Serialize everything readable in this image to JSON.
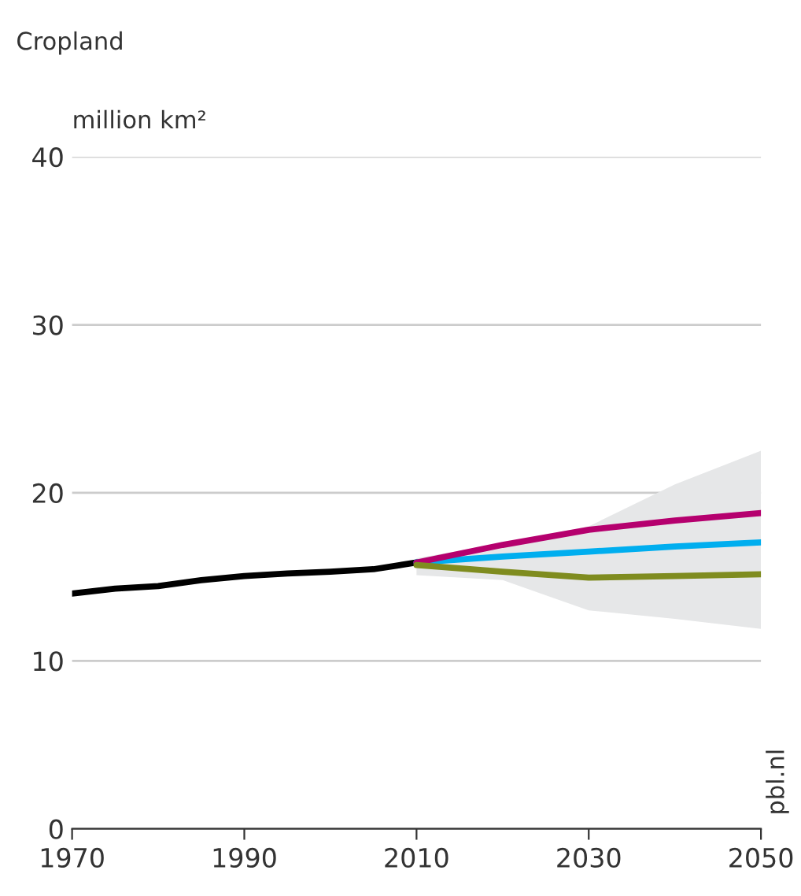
{
  "chart_data": {
    "type": "line",
    "title": "Cropland",
    "ylabel": "million km²",
    "xlim": [
      1970,
      2050
    ],
    "xticks": [
      1970,
      1990,
      2010,
      2030,
      2050
    ],
    "ylim": [
      0,
      40
    ],
    "yticks": [
      0,
      10,
      20,
      30,
      40
    ],
    "grid": "y",
    "legend": false,
    "series": [
      {
        "color": "#000000",
        "x": [
          1970,
          1975,
          1980,
          1985,
          1990,
          1995,
          2000,
          2005,
          2010
        ],
        "values": [
          14.0,
          14.3,
          14.45,
          14.8,
          15.05,
          15.2,
          15.3,
          15.45,
          15.85
        ]
      },
      {
        "color": "#00aeef",
        "x": [
          2010,
          2020,
          2030,
          2040,
          2050
        ],
        "values": [
          15.85,
          16.2,
          16.5,
          16.8,
          17.05
        ],
        "lower": [
          15.1,
          14.8,
          13.0,
          12.5,
          11.9
        ],
        "upper": [
          16.1,
          17.0,
          18.0,
          20.5,
          22.5
        ]
      },
      {
        "color": "#b5006e",
        "x": [
          2010,
          2020,
          2030,
          2040,
          2050
        ],
        "values": [
          15.85,
          16.9,
          17.8,
          18.35,
          18.8
        ]
      },
      {
        "color": "#7f8c1f",
        "x": [
          2010,
          2020,
          2030,
          2040,
          2050
        ],
        "values": [
          15.7,
          15.3,
          14.95,
          15.05,
          15.15
        ]
      }
    ],
    "annotations": [
      "pbl.nl"
    ]
  }
}
